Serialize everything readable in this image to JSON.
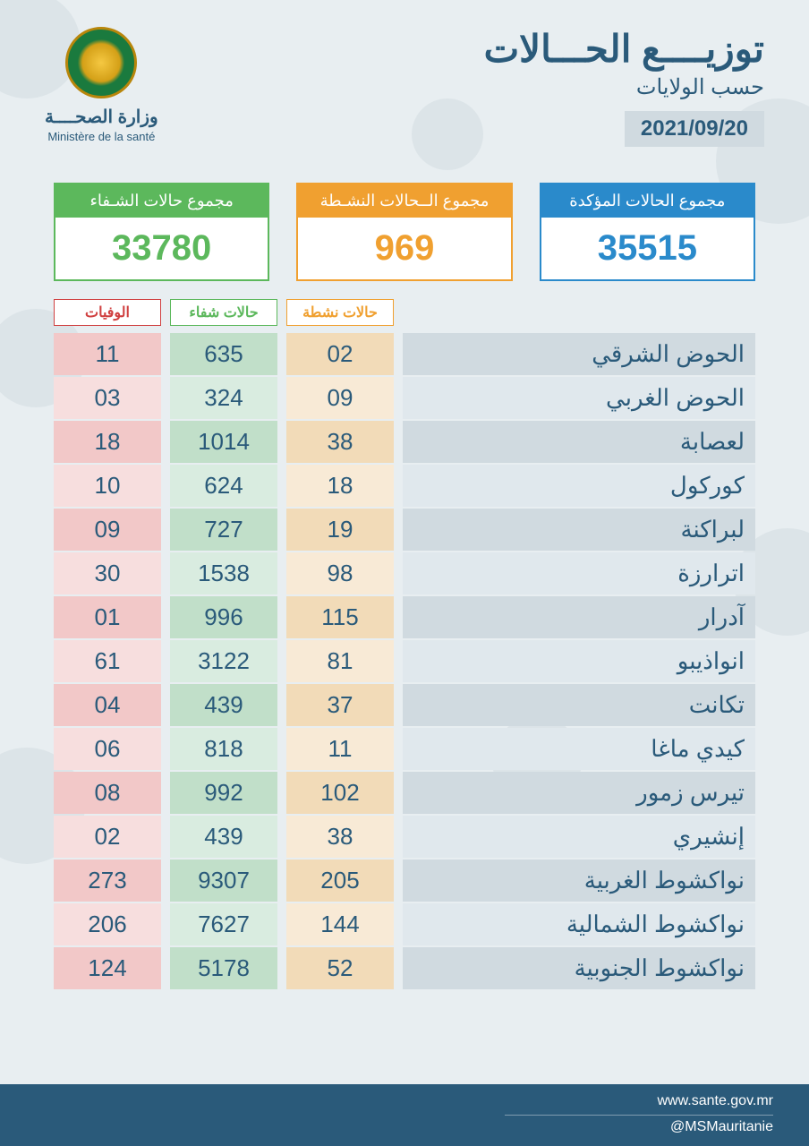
{
  "header": {
    "ministry_ar": "وزارة الصحــــة",
    "ministry_fr": "Ministère de la santé",
    "title_main": "توزيــــع الحـــالات",
    "title_sub": "حسب الولايات",
    "date": "2021/09/20"
  },
  "summary": {
    "confirmed": {
      "label": "مجموع الحالات المؤكدة",
      "value": "35515",
      "color": "#2a8acb"
    },
    "active": {
      "label": "مجموع الــحالات النشـطة",
      "value": "969",
      "color": "#f0a030"
    },
    "recovered": {
      "label": "مجموع حالات الشـفاء",
      "value": "33780",
      "color": "#5cb85c"
    }
  },
  "columns": {
    "deaths": {
      "label": "الوفيات",
      "color": "#d04040"
    },
    "recovered": {
      "label": "حالات شفاء",
      "color": "#5cb85c"
    },
    "active": {
      "label": "حالات نشطة",
      "color": "#f0a030"
    }
  },
  "rows": [
    {
      "name": "الحوض الشرقي",
      "active": "02",
      "recovered": "635",
      "deaths": "11"
    },
    {
      "name": "الحوض الغربي",
      "active": "09",
      "recovered": "324",
      "deaths": "03"
    },
    {
      "name": "لعصابة",
      "active": "38",
      "recovered": "1014",
      "deaths": "18"
    },
    {
      "name": "كوركول",
      "active": "18",
      "recovered": "624",
      "deaths": "10"
    },
    {
      "name": "لبراكنة",
      "active": "19",
      "recovered": "727",
      "deaths": "09"
    },
    {
      "name": "اترارزة",
      "active": "98",
      "recovered": "1538",
      "deaths": "30"
    },
    {
      "name": "آدرار",
      "active": "115",
      "recovered": "996",
      "deaths": "01"
    },
    {
      "name": "انواذيبو",
      "active": "81",
      "recovered": "3122",
      "deaths": "61"
    },
    {
      "name": "تكانت",
      "active": "37",
      "recovered": "439",
      "deaths": "04"
    },
    {
      "name": "كيدي ماغا",
      "active": "11",
      "recovered": "818",
      "deaths": "06"
    },
    {
      "name": "تيرس زمور",
      "active": "102",
      "recovered": "992",
      "deaths": "08"
    },
    {
      "name": "إنشيري",
      "active": "38",
      "recovered": "439",
      "deaths": "02"
    },
    {
      "name": "نواكشوط الغربية",
      "active": "205",
      "recovered": "9307",
      "deaths": "273"
    },
    {
      "name": "نواكشوط الشمالية",
      "active": "144",
      "recovered": "7627",
      "deaths": "206"
    },
    {
      "name": "نواكشوط الجنوبية",
      "active": "52",
      "recovered": "5178",
      "deaths": "124"
    }
  ],
  "footer": {
    "url": "www.sante.gov.mr",
    "handle": "@MSMauritanie"
  },
  "style": {
    "page_bg": "#e8eef1",
    "text_primary": "#2a5a7a",
    "row_odd": {
      "death": "#f2c8c8",
      "rec": "#c1dfc9",
      "act": "#f2dbb8",
      "name": "#d0dae0"
    },
    "row_even": {
      "death": "#f7dede",
      "rec": "#d9ece0",
      "act": "#f8ead6",
      "name": "#e0e8ed"
    },
    "footer_bg": "#2a5a7a"
  }
}
